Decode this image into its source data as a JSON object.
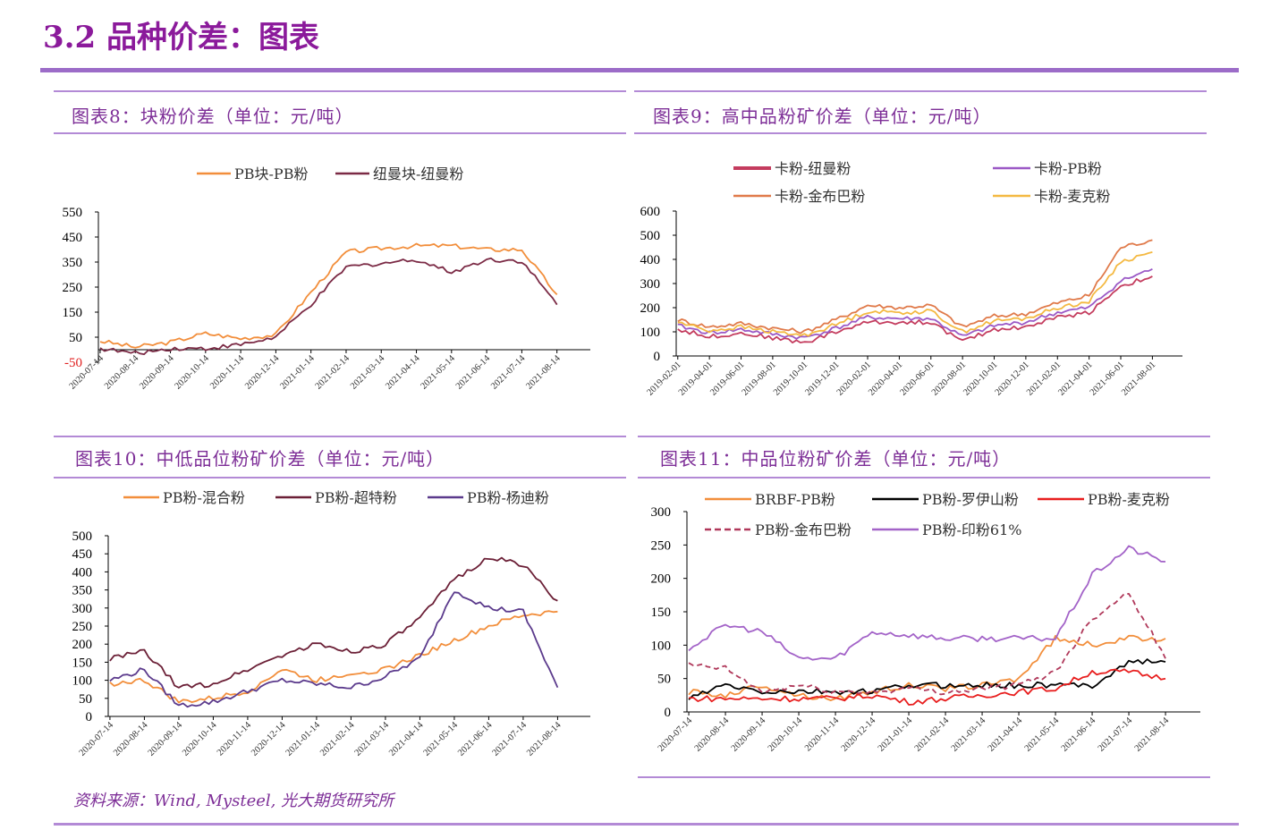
{
  "page": {
    "title": "3.2 品种价差：图表",
    "source": "资料来源：Wind, Mysteel, 光大期货研究所",
    "footer_fragment": "“"
  },
  "panels": [
    {
      "title": "图表8：块粉价差（单位：元/吨）"
    },
    {
      "title": "图表9：高中品粉矿价差（单位：元/吨）"
    },
    {
      "title": "图表10：中低品位粉矿价差（单位：元/吨）"
    },
    {
      "title": "图表11：中品位粉矿价差（单位：元/吨）"
    }
  ],
  "chart_data": [
    {
      "type": "line",
      "title": "图表8：块粉价差（单位：元/吨）",
      "x": [
        "2020-07-14",
        "2020-08-14",
        "2020-09-14",
        "2020-10-14",
        "2020-11-14",
        "2020-12-14",
        "2021-01-14",
        "2021-02-14",
        "2021-03-14",
        "2021-04-14",
        "2021-05-14",
        "2021-06-14",
        "2021-07-14",
        "2021-08-14"
      ],
      "ylim": [
        -50,
        550
      ],
      "yticks": [
        "550",
        "450",
        "350",
        "250",
        "150",
        "50",
        "-50"
      ],
      "legend_position": "top",
      "series": [
        {
          "name": "PB块-PB粉",
          "color": "#f28e3b",
          "values": [
            35,
            10,
            30,
            65,
            45,
            60,
            230,
            390,
            405,
            415,
            415,
            400,
            400,
            220
          ]
        },
        {
          "name": "纽曼块-纽曼粉",
          "color": "#7b2a45",
          "values": [
            5,
            -15,
            5,
            5,
            20,
            50,
            180,
            330,
            345,
            360,
            310,
            360,
            355,
            180
          ]
        }
      ]
    },
    {
      "type": "line",
      "title": "图表9：高中品粉矿价差（单位：元/吨）",
      "x": [
        "2019-02-01",
        "2019-04-01",
        "2019-06-01",
        "2019-08-01",
        "2019-10-01",
        "2019-12-01",
        "2020-02-01",
        "2020-04-01",
        "2020-06-01",
        "2020-08-01",
        "2020-10-01",
        "2020-12-01",
        "2021-02-01",
        "2021-04-01",
        "2021-06-01",
        "2021-08-01"
      ],
      "ylim": [
        0,
        600
      ],
      "yticks": [
        "600",
        "500",
        "400",
        "300",
        "200",
        "100",
        "0"
      ],
      "legend_position": "top",
      "series": [
        {
          "name": "卡粉-纽曼粉",
          "color": "#c43c5e",
          "values": [
            110,
            80,
            95,
            75,
            55,
            100,
            140,
            140,
            140,
            60,
            110,
            120,
            160,
            180,
            290,
            330
          ]
        },
        {
          "name": "卡粉-PB粉",
          "color": "#9b59c6",
          "values": [
            125,
            95,
            110,
            90,
            75,
            115,
            160,
            155,
            155,
            80,
            125,
            140,
            180,
            200,
            310,
            360
          ]
        },
        {
          "name": "卡粉-金布巴粉",
          "color": "#e07a4a",
          "values": [
            150,
            120,
            135,
            115,
            100,
            150,
            210,
            200,
            210,
            120,
            165,
            175,
            220,
            250,
            450,
            480
          ]
        },
        {
          "name": "卡粉-麦克粉",
          "color": "#f4b942",
          "values": [
            140,
            105,
            120,
            100,
            85,
            130,
            185,
            180,
            185,
            100,
            145,
            155,
            200,
            225,
            390,
            430
          ]
        }
      ]
    },
    {
      "type": "line",
      "title": "图表10：中低品位粉矿价差（单位：元/吨）",
      "x": [
        "2020-07-14",
        "2020-08-14",
        "2020-09-14",
        "2020-10-14",
        "2020-11-14",
        "2020-12-14",
        "2021-01-14",
        "2021-02-14",
        "2021-03-14",
        "2021-04-14",
        "2021-05-14",
        "2021-06-14",
        "2021-07-14",
        "2021-08-14"
      ],
      "ylim": [
        0,
        500
      ],
      "yticks": [
        "500",
        "450",
        "400",
        "350",
        "300",
        "250",
        "200",
        "150",
        "100",
        "50",
        "0"
      ],
      "legend_position": "top",
      "series": [
        {
          "name": "PB粉-混合粉",
          "color": "#f28e3b",
          "values": [
            90,
            100,
            40,
            50,
            70,
            130,
            100,
            120,
            130,
            170,
            210,
            250,
            280,
            290
          ]
        },
        {
          "name": "PB粉-超特粉",
          "color": "#6b1f36",
          "values": [
            160,
            180,
            80,
            90,
            130,
            170,
            200,
            180,
            200,
            270,
            380,
            440,
            420,
            320
          ]
        },
        {
          "name": "PB粉-杨迪粉",
          "color": "#5b3a8c",
          "values": [
            100,
            130,
            30,
            40,
            70,
            100,
            90,
            80,
            110,
            160,
            350,
            300,
            290,
            80
          ]
        }
      ]
    },
    {
      "type": "line",
      "title": "图表11：中品位粉矿价差（单位：元/吨）",
      "x": [
        "2020-07-14",
        "2020-08-14",
        "2020-09-14",
        "2020-10-14",
        "2020-11-14",
        "2020-12-14",
        "2021-01-14",
        "2021-02-14",
        "2021-03-14",
        "2021-04-14",
        "2021-05-14",
        "2021-06-14",
        "2021-07-14",
        "2021-08-14"
      ],
      "ylim": [
        0,
        300
      ],
      "yticks": [
        "300",
        "250",
        "200",
        "150",
        "100",
        "50",
        "0"
      ],
      "legend_position": "top",
      "series": [
        {
          "name": "BRBF-PB粉",
          "color": "#f28e3b",
          "values": [
            30,
            25,
            40,
            25,
            20,
            30,
            40,
            35,
            40,
            50,
            110,
            100,
            110,
            110
          ]
        },
        {
          "name": "PB粉-罗伊山粉",
          "color": "#000000",
          "values": [
            20,
            40,
            30,
            30,
            30,
            30,
            40,
            40,
            40,
            40,
            40,
            40,
            75,
            75
          ]
        },
        {
          "name": "PB粉-麦克粉",
          "color": "#e81e1e",
          "values": [
            20,
            20,
            20,
            20,
            20,
            25,
            15,
            20,
            25,
            30,
            35,
            60,
            60,
            50
          ]
        },
        {
          "name": "PB粉-金布巴粉",
          "color": "#b0385a",
          "dashed": true,
          "values": [
            70,
            65,
            30,
            40,
            30,
            30,
            35,
            30,
            35,
            40,
            60,
            140,
            180,
            80
          ]
        },
        {
          "name": "PB粉-印粉61%",
          "color": "#a363c8",
          "values": [
            95,
            130,
            120,
            80,
            80,
            120,
            115,
            110,
            110,
            110,
            110,
            205,
            245,
            225
          ]
        }
      ]
    }
  ]
}
